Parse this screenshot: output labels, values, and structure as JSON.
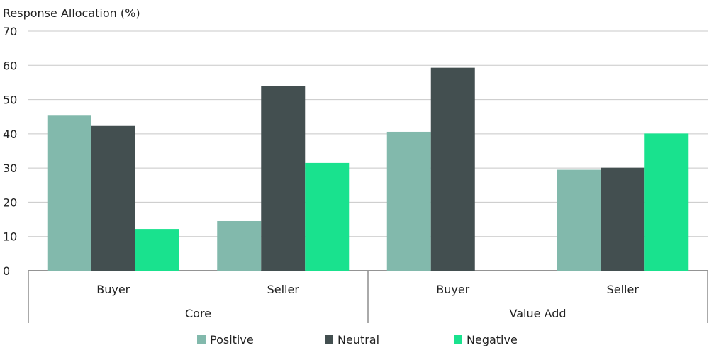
{
  "chart_data": {
    "type": "bar",
    "title": "Response Allocation (%)",
    "ylim": [
      0,
      70
    ],
    "yticks": [
      0,
      10,
      20,
      30,
      40,
      50,
      60,
      70
    ],
    "grid": true,
    "legend_position": "bottom-center",
    "groups": [
      {
        "label": "Core",
        "categories": [
          "Buyer",
          "Seller"
        ]
      },
      {
        "label": "Value Add",
        "categories": [
          "Buyer",
          "Seller"
        ]
      }
    ],
    "series": [
      {
        "name": "Positive",
        "color": "#82b9ac",
        "values": [
          45.3,
          14.5,
          40.6,
          29.5
        ]
      },
      {
        "name": "Neutral",
        "color": "#434f50",
        "values": [
          42.3,
          54.0,
          59.3,
          30.1
        ]
      },
      {
        "name": "Negative",
        "color": "#19e28e",
        "values": [
          12.2,
          31.5,
          0,
          40.1
        ]
      }
    ]
  },
  "colors": {
    "grid": "#c8c8c8",
    "axis": "#555555"
  }
}
